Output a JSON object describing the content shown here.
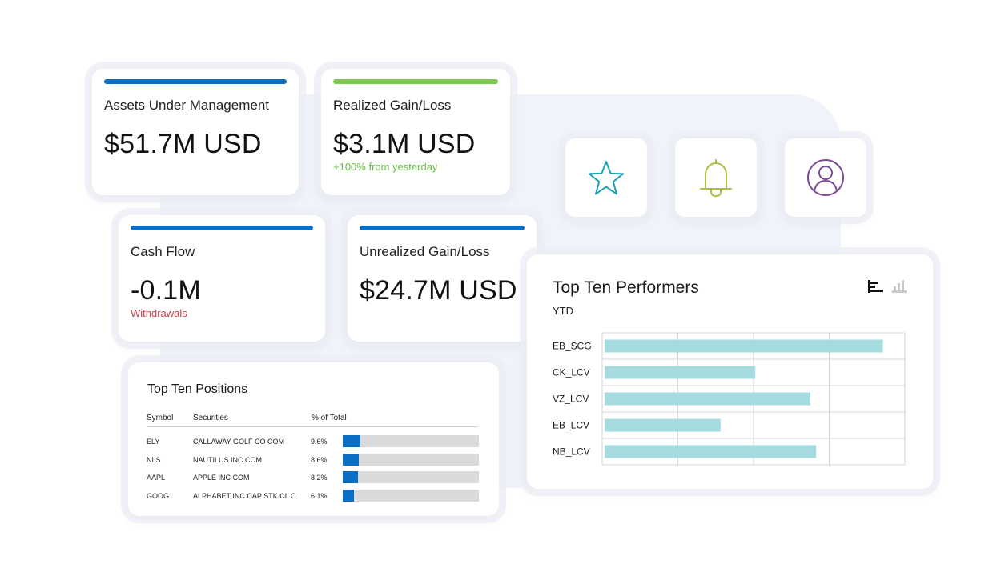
{
  "metrics": {
    "aum": {
      "label": "Assets Under Management",
      "value": "$51.7M USD",
      "accent": "#0a6fc2"
    },
    "realized": {
      "label": "Realized Gain/Loss",
      "value": "$3.1M USD",
      "sub": "+100% from yesterday",
      "accent": "#7ccb4f",
      "sub_color": "#6cc04a"
    },
    "cash_flow": {
      "label": "Cash Flow",
      "value": "-0.1M",
      "sub": "Withdrawals",
      "accent": "#0a6fc2",
      "sub_color": "#c6424a"
    },
    "unrealized": {
      "label": "Unrealized Gain/Loss",
      "value": "$24.7M USD",
      "accent": "#0a6fc2"
    }
  },
  "quick_actions": [
    {
      "icon": "star-icon",
      "color": "#1aa2b4"
    },
    {
      "icon": "bell-icon",
      "color": "#a9c23f"
    },
    {
      "icon": "user-icon",
      "color": "#7a4b94"
    }
  ],
  "positions": {
    "title": "Top Ten Positions",
    "columns": {
      "symbol": "Symbol",
      "securities": "Securities",
      "pct": "% of Total"
    },
    "rows": [
      {
        "symbol": "ELY",
        "security": "CALLAWAY GOLF CO COM",
        "pct_label": "9.6%",
        "pct": 9.6
      },
      {
        "symbol": "NLS",
        "security": "NAUTILUS INC COM",
        "pct_label": "8.6%",
        "pct": 8.6
      },
      {
        "symbol": "AAPL",
        "security": "APPLE INC COM",
        "pct_label": "8.2%",
        "pct": 8.2
      },
      {
        "symbol": "GOOG",
        "security": "ALPHABET INC CAP STK CL C",
        "pct_label": "6.1%",
        "pct": 6.1
      }
    ],
    "bar_color": "#0a6fc2"
  },
  "performers": {
    "title": "Top Ten Performers",
    "subtitle": "YTD",
    "toggle_icons": [
      "horizontal-bar-chart-icon",
      "vertical-bar-chart-icon"
    ]
  },
  "chart_data": {
    "type": "bar",
    "orientation": "horizontal",
    "title": "Top Ten Performers",
    "subtitle": "YTD",
    "categories": [
      "EB_SCG",
      "CK_LCV",
      "VZ_LCV",
      "EB_LCV",
      "NB_LCV"
    ],
    "values": [
      96,
      52,
      71,
      40,
      73
    ],
    "xlim": [
      0,
      100
    ],
    "grid": true,
    "bar_color": "#a6dbe0"
  }
}
